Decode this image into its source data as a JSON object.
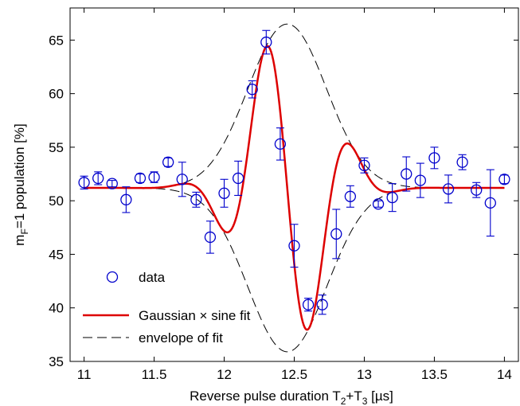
{
  "chart_data": {
    "type": "scatter",
    "xlabel": "Reverse pulse duration T2+T3 [µs]",
    "ylabel": "mF=1 population [%]",
    "xlim": [
      10.9,
      14.1
    ],
    "ylim": [
      35,
      68
    ],
    "x_ticks": [
      11,
      11.5,
      12,
      12.5,
      13,
      13.5,
      14
    ],
    "y_ticks": [
      35,
      40,
      45,
      50,
      55,
      60,
      65
    ],
    "grid": false,
    "legend_position": "bottom-left",
    "legend": [
      {
        "label": "data"
      },
      {
        "label": "Gaussian × sine fit"
      },
      {
        "label": "envelope of fit"
      }
    ],
    "colors": {
      "data": "#0000cc",
      "fit": "#dd0000",
      "envelope": "#000000"
    },
    "fit_model": {
      "baseline": 51.2,
      "amplitude": 15.3,
      "center": 12.45,
      "sigma": 0.28,
      "sine_period": 0.64,
      "sine_phase_at": 12.45
    },
    "series": [
      {
        "name": "data",
        "x": [
          11.0,
          11.1,
          11.2,
          11.3,
          11.4,
          11.5,
          11.6,
          11.7,
          11.8,
          11.9,
          12.0,
          12.1,
          12.2,
          12.3,
          12.4,
          12.5,
          12.6,
          12.7,
          12.8,
          12.9,
          13.0,
          13.1,
          13.2,
          13.3,
          13.4,
          13.5,
          13.6,
          13.7,
          13.8,
          13.9,
          14.0
        ],
        "y": [
          51.7,
          52.1,
          51.6,
          50.1,
          52.1,
          52.2,
          53.6,
          52.0,
          50.1,
          46.6,
          50.7,
          52.1,
          60.4,
          64.8,
          55.3,
          45.8,
          40.3,
          40.3,
          46.9,
          50.4,
          53.3,
          49.7,
          50.3,
          52.5,
          51.9,
          54.0,
          51.1,
          53.6,
          51.0,
          49.8,
          52.0
        ],
        "err": [
          0.6,
          0.6,
          0.3,
          1.2,
          0.4,
          0.5,
          0.4,
          1.6,
          0.7,
          1.5,
          1.3,
          1.6,
          0.8,
          1.1,
          1.5,
          2.0,
          0.6,
          0.9,
          2.3,
          1.0,
          0.7,
          0.3,
          1.3,
          1.6,
          1.6,
          1.0,
          1.3,
          0.7,
          0.7,
          3.1,
          0.4
        ]
      }
    ]
  }
}
